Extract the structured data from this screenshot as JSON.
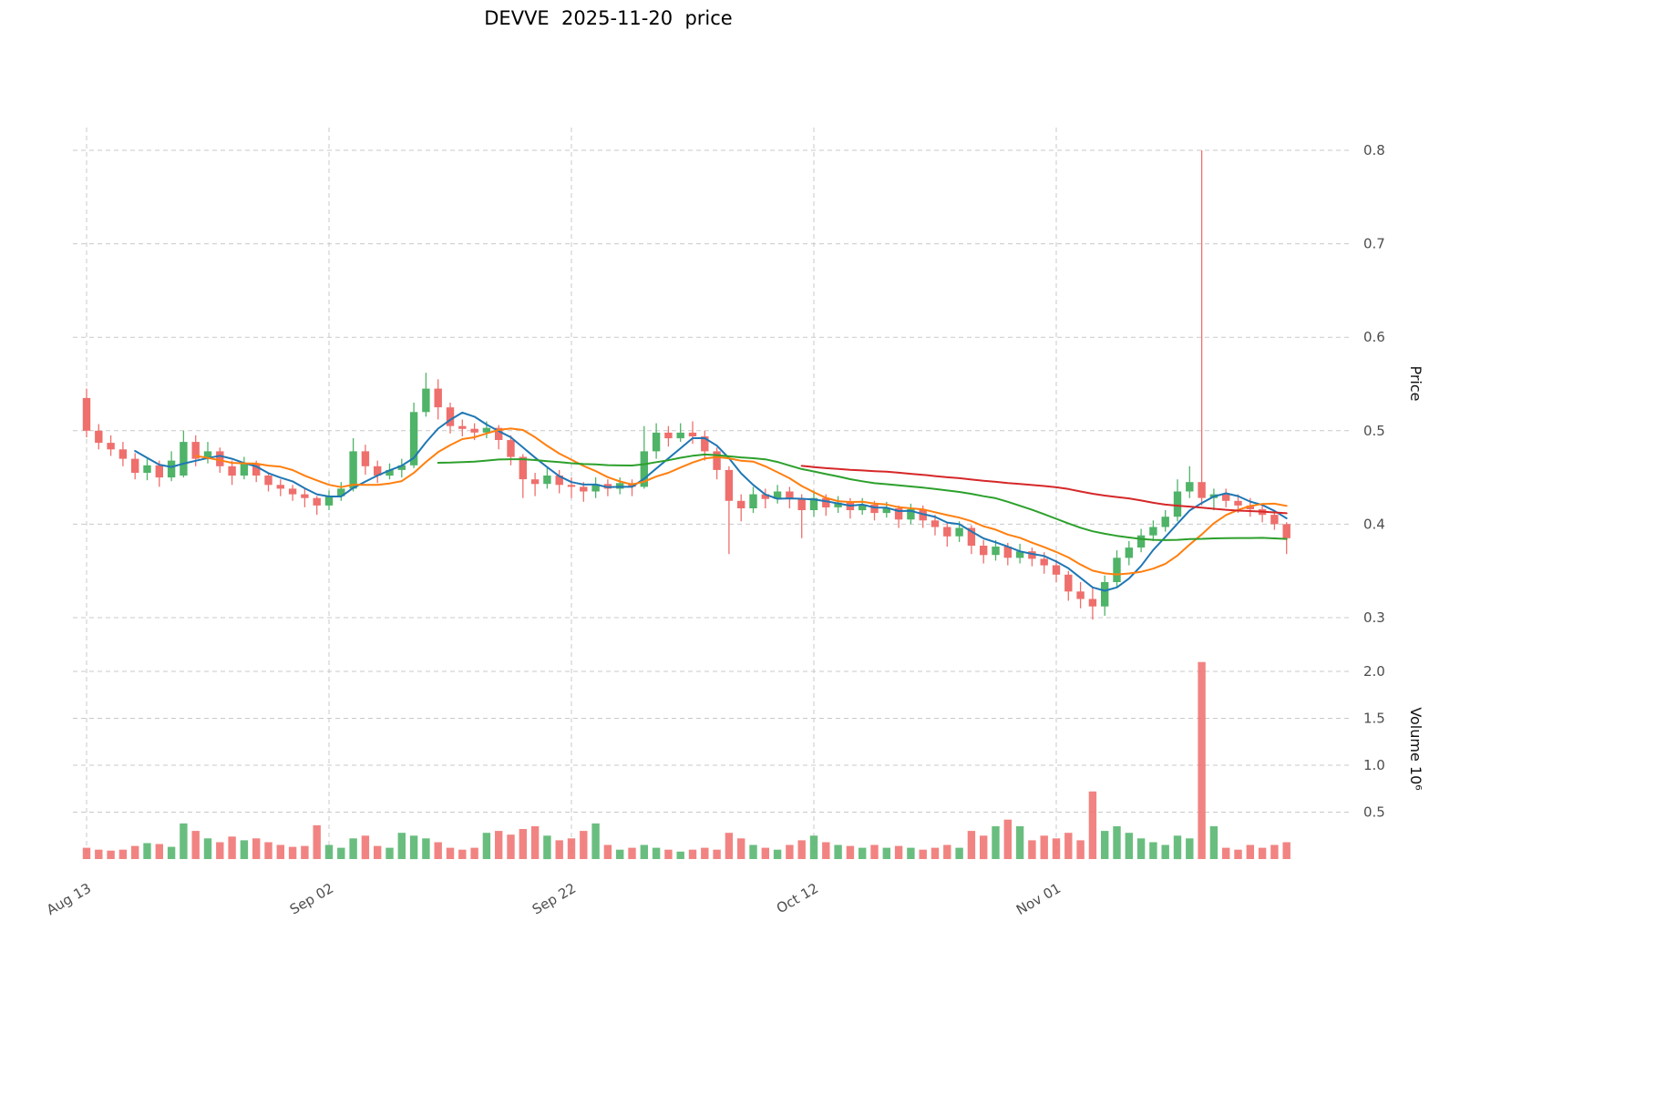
{
  "title": "DEVVE  2025-11-20  price",
  "axes": {
    "price_label": "Price",
    "volume_label": "Volume  10⁶",
    "price_ticks": [
      0.3,
      0.4,
      0.5,
      0.6,
      0.7,
      0.8
    ],
    "volume_ticks": [
      0.5,
      1.0,
      1.5,
      2.0
    ],
    "x_ticks": [
      {
        "index": 0,
        "label": "Aug 13"
      },
      {
        "index": 20,
        "label": "Sep 02"
      },
      {
        "index": 40,
        "label": "Sep 22"
      },
      {
        "index": 60,
        "label": "Oct 12"
      },
      {
        "index": 80,
        "label": "Nov 01"
      }
    ]
  },
  "colors": {
    "up": "#4fb368",
    "down": "#ee6f6c",
    "grid": "#c9c9c9"
  },
  "chart_data": {
    "type": "candlestick",
    "title": "DEVVE  2025-11-20  price",
    "ylabel": "Price",
    "ylabel_volume": "Volume (millions)",
    "grid": true,
    "price_axis_range": [
      0.28,
      0.82
    ],
    "volume_axis_range_millions": [
      0,
      2.35
    ],
    "x_tick_labels": [
      "Aug 13",
      "Sep 02",
      "Sep 22",
      "Oct 12",
      "Nov 01"
    ],
    "moving_averages": [
      {
        "name": "MA5",
        "period": 5,
        "color": "#1f77b4"
      },
      {
        "name": "MA10",
        "period": 10,
        "color": "#ff7f0e"
      },
      {
        "name": "MA30",
        "period": 30,
        "color": "#2ca02c"
      },
      {
        "name": "MA60",
        "period": 60,
        "color": "#d62728"
      }
    ],
    "columns": [
      "date",
      "open",
      "high",
      "low",
      "close",
      "volume_millions"
    ],
    "candles": [
      [
        "Aug 13",
        0.535,
        0.545,
        0.493,
        0.5,
        0.12
      ],
      [
        "Aug 14",
        0.5,
        0.507,
        0.48,
        0.487,
        0.1
      ],
      [
        "Aug 15",
        0.487,
        0.495,
        0.473,
        0.48,
        0.09
      ],
      [
        "Aug 16",
        0.48,
        0.488,
        0.462,
        0.47,
        0.1
      ],
      [
        "Aug 17",
        0.47,
        0.476,
        0.448,
        0.455,
        0.14
      ],
      [
        "Aug 18",
        0.455,
        0.47,
        0.447,
        0.463,
        0.17
      ],
      [
        "Aug 19",
        0.463,
        0.468,
        0.44,
        0.45,
        0.16
      ],
      [
        "Aug 20",
        0.45,
        0.478,
        0.446,
        0.468,
        0.13
      ],
      [
        "Aug 21",
        0.452,
        0.5,
        0.45,
        0.488,
        0.38
      ],
      [
        "Aug 22",
        0.488,
        0.495,
        0.462,
        0.47,
        0.3
      ],
      [
        "Aug 23",
        0.47,
        0.488,
        0.465,
        0.478,
        0.22
      ],
      [
        "Aug 24",
        0.478,
        0.482,
        0.455,
        0.462,
        0.18
      ],
      [
        "Aug 25",
        0.462,
        0.468,
        0.442,
        0.452,
        0.24
      ],
      [
        "Aug 26",
        0.452,
        0.472,
        0.448,
        0.465,
        0.2
      ],
      [
        "Aug 27",
        0.465,
        0.468,
        0.445,
        0.452,
        0.22
      ],
      [
        "Aug 28",
        0.452,
        0.455,
        0.435,
        0.442,
        0.18
      ],
      [
        "Aug 29",
        0.442,
        0.448,
        0.43,
        0.438,
        0.15
      ],
      [
        "Aug 30",
        0.438,
        0.442,
        0.425,
        0.432,
        0.13
      ],
      [
        "Aug 31",
        0.432,
        0.438,
        0.418,
        0.428,
        0.14
      ],
      [
        "Sep 01",
        0.428,
        0.43,
        0.41,
        0.42,
        0.36
      ],
      [
        "Sep 02",
        0.42,
        0.436,
        0.415,
        0.43,
        0.15
      ],
      [
        "Sep 03",
        0.43,
        0.445,
        0.425,
        0.438,
        0.12
      ],
      [
        "Sep 04",
        0.438,
        0.492,
        0.435,
        0.478,
        0.22
      ],
      [
        "Sep 05",
        0.478,
        0.485,
        0.453,
        0.462,
        0.25
      ],
      [
        "Sep 06",
        0.462,
        0.468,
        0.444,
        0.452,
        0.14
      ],
      [
        "Sep 07",
        0.452,
        0.465,
        0.448,
        0.458,
        0.12
      ],
      [
        "Sep 08",
        0.458,
        0.47,
        0.45,
        0.463,
        0.28
      ],
      [
        "Sep 09",
        0.463,
        0.53,
        0.46,
        0.52,
        0.25
      ],
      [
        "Sep 10",
        0.52,
        0.562,
        0.515,
        0.545,
        0.22
      ],
      [
        "Sep 11",
        0.545,
        0.555,
        0.512,
        0.525,
        0.18
      ],
      [
        "Sep 12",
        0.525,
        0.53,
        0.497,
        0.505,
        0.12
      ],
      [
        "Sep 13",
        0.505,
        0.512,
        0.494,
        0.502,
        0.1
      ],
      [
        "Sep 14",
        0.502,
        0.508,
        0.49,
        0.498,
        0.12
      ],
      [
        "Sep 15",
        0.498,
        0.51,
        0.492,
        0.503,
        0.28
      ],
      [
        "Sep 16",
        0.503,
        0.506,
        0.48,
        0.49,
        0.3
      ],
      [
        "Sep 17",
        0.49,
        0.495,
        0.463,
        0.472,
        0.26
      ],
      [
        "Sep 18",
        0.472,
        0.475,
        0.428,
        0.448,
        0.32
      ],
      [
        "Sep 19",
        0.448,
        0.455,
        0.43,
        0.443,
        0.35
      ],
      [
        "Sep 20",
        0.443,
        0.46,
        0.438,
        0.452,
        0.25
      ],
      [
        "Sep 21",
        0.452,
        0.458,
        0.433,
        0.442,
        0.2
      ],
      [
        "Sep 22",
        0.442,
        0.45,
        0.428,
        0.44,
        0.22
      ],
      [
        "Sep 23",
        0.44,
        0.445,
        0.424,
        0.435,
        0.3
      ],
      [
        "Sep 24",
        0.435,
        0.45,
        0.428,
        0.443,
        0.38
      ],
      [
        "Sep 25",
        0.443,
        0.448,
        0.43,
        0.438,
        0.15
      ],
      [
        "Sep 26",
        0.438,
        0.45,
        0.432,
        0.444,
        0.1
      ],
      [
        "Sep 27",
        0.444,
        0.448,
        0.43,
        0.44,
        0.12
      ],
      [
        "Sep 28",
        0.44,
        0.505,
        0.438,
        0.478,
        0.15
      ],
      [
        "Sep 29",
        0.478,
        0.508,
        0.47,
        0.498,
        0.12
      ],
      [
        "Sep 30",
        0.498,
        0.505,
        0.483,
        0.492,
        0.1
      ],
      [
        "Oct 01",
        0.492,
        0.508,
        0.488,
        0.498,
        0.08
      ],
      [
        "Oct 02",
        0.498,
        0.51,
        0.486,
        0.494,
        0.1
      ],
      [
        "Oct 03",
        0.494,
        0.5,
        0.468,
        0.478,
        0.12
      ],
      [
        "Oct 04",
        0.478,
        0.482,
        0.448,
        0.458,
        0.1
      ],
      [
        "Oct 05",
        0.458,
        0.462,
        0.368,
        0.425,
        0.28
      ],
      [
        "Oct 06",
        0.425,
        0.432,
        0.403,
        0.417,
        0.22
      ],
      [
        "Oct 07",
        0.417,
        0.44,
        0.412,
        0.432,
        0.15
      ],
      [
        "Oct 08",
        0.432,
        0.438,
        0.417,
        0.427,
        0.12
      ],
      [
        "Oct 09",
        0.427,
        0.442,
        0.422,
        0.435,
        0.1
      ],
      [
        "Oct 10",
        0.435,
        0.44,
        0.417,
        0.427,
        0.15
      ],
      [
        "Oct 11",
        0.427,
        0.432,
        0.385,
        0.415,
        0.2
      ],
      [
        "Oct 12",
        0.415,
        0.436,
        0.408,
        0.428,
        0.25
      ],
      [
        "Oct 13",
        0.428,
        0.432,
        0.409,
        0.418,
        0.18
      ],
      [
        "Oct 14",
        0.418,
        0.43,
        0.412,
        0.423,
        0.15
      ],
      [
        "Oct 15",
        0.423,
        0.428,
        0.406,
        0.415,
        0.14
      ],
      [
        "Oct 16",
        0.415,
        0.428,
        0.41,
        0.421,
        0.12
      ],
      [
        "Oct 17",
        0.421,
        0.425,
        0.404,
        0.412,
        0.15
      ],
      [
        "Oct 18",
        0.412,
        0.424,
        0.407,
        0.417,
        0.12
      ],
      [
        "Oct 19",
        0.417,
        0.42,
        0.396,
        0.405,
        0.14
      ],
      [
        "Oct 20",
        0.405,
        0.422,
        0.4,
        0.416,
        0.12
      ],
      [
        "Oct 21",
        0.416,
        0.42,
        0.396,
        0.404,
        0.1
      ],
      [
        "Oct 22",
        0.404,
        0.41,
        0.388,
        0.397,
        0.12
      ],
      [
        "Oct 23",
        0.397,
        0.402,
        0.376,
        0.387,
        0.15
      ],
      [
        "Oct 24",
        0.387,
        0.403,
        0.381,
        0.396,
        0.12
      ],
      [
        "Oct 25",
        0.396,
        0.399,
        0.368,
        0.377,
        0.3
      ],
      [
        "Oct 26",
        0.377,
        0.383,
        0.358,
        0.367,
        0.25
      ],
      [
        "Oct 27",
        0.367,
        0.383,
        0.361,
        0.376,
        0.35
      ],
      [
        "Oct 28",
        0.376,
        0.38,
        0.356,
        0.364,
        0.42
      ],
      [
        "Oct 29",
        0.364,
        0.379,
        0.358,
        0.371,
        0.35
      ],
      [
        "Oct 30",
        0.371,
        0.375,
        0.355,
        0.363,
        0.2
      ],
      [
        "Oct 31",
        0.363,
        0.37,
        0.347,
        0.356,
        0.25
      ],
      [
        "Nov 01",
        0.356,
        0.362,
        0.338,
        0.346,
        0.22
      ],
      [
        "Nov 02",
        0.346,
        0.35,
        0.318,
        0.328,
        0.28
      ],
      [
        "Nov 03",
        0.328,
        0.338,
        0.31,
        0.32,
        0.2
      ],
      [
        "Nov 04",
        0.32,
        0.332,
        0.298,
        0.312,
        0.72
      ],
      [
        "Nov 05",
        0.312,
        0.345,
        0.302,
        0.338,
        0.3
      ],
      [
        "Nov 06",
        0.338,
        0.372,
        0.332,
        0.364,
        0.35
      ],
      [
        "Nov 07",
        0.364,
        0.382,
        0.356,
        0.375,
        0.28
      ],
      [
        "Nov 08",
        0.375,
        0.395,
        0.37,
        0.388,
        0.22
      ],
      [
        "Nov 09",
        0.388,
        0.404,
        0.382,
        0.397,
        0.18
      ],
      [
        "Nov 10",
        0.397,
        0.415,
        0.392,
        0.408,
        0.15
      ],
      [
        "Nov 11",
        0.408,
        0.448,
        0.403,
        0.435,
        0.25
      ],
      [
        "Nov 12",
        0.435,
        0.462,
        0.428,
        0.445,
        0.22
      ],
      [
        "Nov 13",
        0.445,
        0.8,
        0.42,
        0.428,
        2.1
      ],
      [
        "Nov 14",
        0.428,
        0.438,
        0.415,
        0.432,
        0.35
      ],
      [
        "Nov 15",
        0.432,
        0.438,
        0.418,
        0.425,
        0.12
      ],
      [
        "Nov 16",
        0.425,
        0.432,
        0.412,
        0.42,
        0.1
      ],
      [
        "Nov 17",
        0.42,
        0.428,
        0.408,
        0.416,
        0.15
      ],
      [
        "Nov 18",
        0.416,
        0.422,
        0.402,
        0.41,
        0.12
      ],
      [
        "Nov 19",
        0.41,
        0.415,
        0.394,
        0.4,
        0.15
      ],
      [
        "Nov 20",
        0.4,
        0.402,
        0.368,
        0.385,
        0.18
      ]
    ]
  }
}
